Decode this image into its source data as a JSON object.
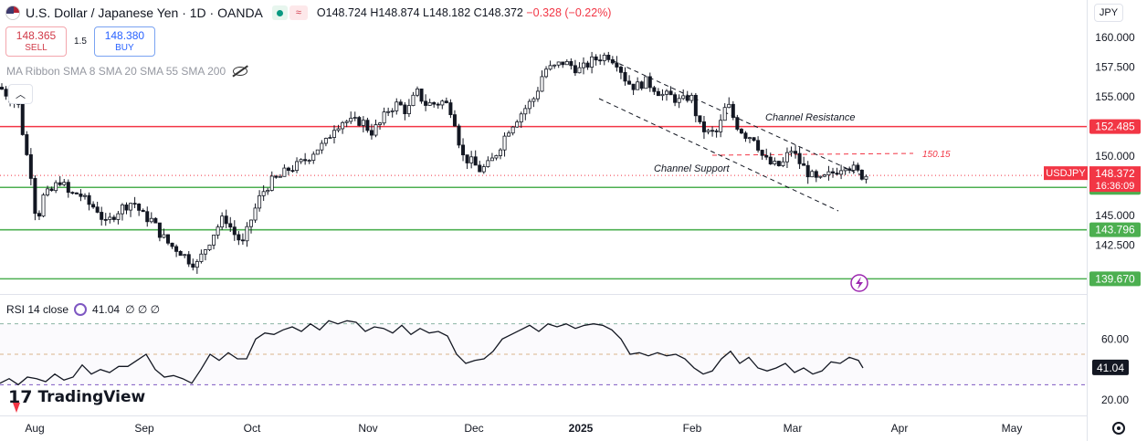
{
  "header": {
    "symbol": "U.S. Dollar / Japanese Yen · 1D · OANDA",
    "open_label": "O",
    "open": "148.724",
    "high_label": "H",
    "high": "148.874",
    "low_label": "L",
    "low": "148.182",
    "close_label": "C",
    "close": "148.372",
    "change": "−0.328 (−0.22%)"
  },
  "trade": {
    "sell_price": "148.365",
    "sell_label": "SELL",
    "spread": "1.5",
    "buy_price": "148.380",
    "buy_label": "BUY"
  },
  "indicator_label": "MA Ribbon SMA 8 SMA 20 SMA 55 SMA 200",
  "currency": "JPY",
  "rsi": {
    "label": "RSI 14 close",
    "value": "41.04",
    "extra": "∅ ∅ ∅"
  },
  "brand": "TradingView",
  "colors": {
    "up": "#089981",
    "down": "#f23645",
    "resistance": "#f23645",
    "support": "#4caf50",
    "rsi_line": "#131722",
    "price_tag": "#f23645"
  },
  "chart_data": {
    "type": "candlestick",
    "x_labels": [
      "Aug",
      "Sep",
      "Oct",
      "Nov",
      "Dec",
      "2025",
      "Feb",
      "Mar",
      "Apr",
      "May"
    ],
    "y_ticks": [
      "160.000",
      "157.500",
      "155.000",
      "150.000",
      "145.000",
      "142.500"
    ],
    "ylim": [
      138.7,
      161.6
    ],
    "levels": [
      {
        "label": "152.485",
        "value": 152.485,
        "kind": "resistance"
      },
      {
        "label": "147.364",
        "value": 147.364,
        "kind": "support"
      },
      {
        "label": "143.796",
        "value": 143.796,
        "kind": "support"
      },
      {
        "label": "139.670",
        "value": 139.67,
        "kind": "support"
      }
    ],
    "dashed_level": {
      "label": "150.15",
      "value": 150.15
    },
    "last_price": {
      "symbol": "USDJPY",
      "price": "148.372",
      "countdown": "16:36:09",
      "value": 148.372
    },
    "annotations": [
      "Channel Resistance",
      "Channel Support"
    ],
    "close_path": [
      [
        0,
        155.8
      ],
      [
        10,
        155.0
      ],
      [
        20,
        154.3
      ],
      [
        28,
        150.5
      ],
      [
        36,
        147.8
      ],
      [
        40,
        144.0
      ],
      [
        46,
        146.5
      ],
      [
        56,
        147.0
      ],
      [
        66,
        148.0
      ],
      [
        76,
        146.7
      ],
      [
        86,
        146.9
      ],
      [
        96,
        146.0
      ],
      [
        106,
        145.6
      ],
      [
        116,
        144.2
      ],
      [
        126,
        145.2
      ],
      [
        136,
        145.8
      ],
      [
        146,
        146.2
      ],
      [
        156,
        145.0
      ],
      [
        166,
        144.6
      ],
      [
        176,
        143.4
      ],
      [
        186,
        142.5
      ],
      [
        196,
        142.1
      ],
      [
        206,
        141.3
      ],
      [
        216,
        140.9
      ],
      [
        226,
        142.4
      ],
      [
        236,
        143.8
      ],
      [
        246,
        144.9
      ],
      [
        256,
        143.5
      ],
      [
        266,
        142.6
      ],
      [
        276,
        144.9
      ],
      [
        286,
        146.8
      ],
      [
        296,
        147.8
      ],
      [
        306,
        148.2
      ],
      [
        316,
        148.9
      ],
      [
        326,
        149.2
      ],
      [
        336,
        149.8
      ],
      [
        346,
        150.6
      ],
      [
        356,
        151.0
      ],
      [
        366,
        152.5
      ],
      [
        376,
        153.0
      ],
      [
        386,
        152.8
      ],
      [
        396,
        153.0
      ],
      [
        406,
        152.0
      ],
      [
        416,
        152.7
      ],
      [
        426,
        154.0
      ],
      [
        436,
        154.4
      ],
      [
        446,
        153.7
      ],
      [
        456,
        155.4
      ],
      [
        466,
        154.4
      ],
      [
        476,
        154.4
      ],
      [
        486,
        154.6
      ],
      [
        496,
        153.7
      ],
      [
        506,
        150.0
      ],
      [
        516,
        149.5
      ],
      [
        526,
        148.8
      ],
      [
        536,
        149.3
      ],
      [
        546,
        150.6
      ],
      [
        556,
        152.2
      ],
      [
        566,
        153.2
      ],
      [
        576,
        154.1
      ],
      [
        586,
        155.0
      ],
      [
        596,
        157.3
      ],
      [
        606,
        157.4
      ],
      [
        616,
        157.9
      ],
      [
        626,
        157.6
      ],
      [
        636,
        157.2
      ],
      [
        646,
        157.9
      ],
      [
        656,
        158.3
      ],
      [
        666,
        158.5
      ],
      [
        676,
        157.9
      ],
      [
        686,
        156.3
      ],
      [
        696,
        155.8
      ],
      [
        706,
        156.3
      ],
      [
        716,
        155.8
      ],
      [
        726,
        155.1
      ],
      [
        736,
        155.0
      ],
      [
        746,
        154.5
      ],
      [
        756,
        155.2
      ],
      [
        766,
        152.5
      ],
      [
        776,
        151.9
      ],
      [
        786,
        152.0
      ],
      [
        796,
        154.5
      ],
      [
        806,
        152.7
      ],
      [
        816,
        151.8
      ],
      [
        826,
        151.6
      ],
      [
        836,
        149.8
      ],
      [
        846,
        149.2
      ],
      [
        856,
        149.2
      ],
      [
        866,
        150.6
      ],
      [
        876,
        149.4
      ],
      [
        886,
        148.5
      ],
      [
        896,
        147.8
      ],
      [
        906,
        148.3
      ],
      [
        916,
        148.8
      ],
      [
        926,
        149.4
      ],
      [
        936,
        148.8
      ],
      [
        942,
        148.4
      ],
      [
        950,
        148.372
      ]
    ],
    "rsi_series": {
      "name": "RSI 14 close",
      "ylim": [
        20,
        80
      ],
      "y_ticks": [
        "60.00",
        "20.00"
      ],
      "last": "41.04",
      "values": [
        [
          0,
          31
        ],
        [
          10,
          34
        ],
        [
          20,
          30
        ],
        [
          30,
          35
        ],
        [
          40,
          34
        ],
        [
          50,
          32
        ],
        [
          60,
          37
        ],
        [
          70,
          33
        ],
        [
          80,
          35
        ],
        [
          90,
          43
        ],
        [
          100,
          37
        ],
        [
          110,
          40
        ],
        [
          120,
          38
        ],
        [
          130,
          42
        ],
        [
          140,
          42
        ],
        [
          150,
          46
        ],
        [
          160,
          50
        ],
        [
          170,
          40
        ],
        [
          180,
          35
        ],
        [
          190,
          36
        ],
        [
          200,
          34
        ],
        [
          210,
          31
        ],
        [
          220,
          40
        ],
        [
          230,
          50
        ],
        [
          240,
          46
        ],
        [
          250,
          51
        ],
        [
          260,
          47
        ],
        [
          270,
          47
        ],
        [
          280,
          60
        ],
        [
          290,
          64
        ],
        [
          300,
          63
        ],
        [
          310,
          66
        ],
        [
          320,
          68
        ],
        [
          330,
          65
        ],
        [
          340,
          70
        ],
        [
          350,
          66
        ],
        [
          360,
          72
        ],
        [
          370,
          70
        ],
        [
          380,
          72
        ],
        [
          390,
          71
        ],
        [
          400,
          65
        ],
        [
          410,
          68
        ],
        [
          420,
          67
        ],
        [
          430,
          64
        ],
        [
          440,
          69
        ],
        [
          450,
          63
        ],
        [
          460,
          67
        ],
        [
          470,
          64
        ],
        [
          480,
          65
        ],
        [
          490,
          62
        ],
        [
          500,
          50
        ],
        [
          510,
          44
        ],
        [
          520,
          46
        ],
        [
          530,
          47
        ],
        [
          540,
          52
        ],
        [
          550,
          60
        ],
        [
          560,
          63
        ],
        [
          570,
          66
        ],
        [
          580,
          69
        ],
        [
          590,
          65
        ],
        [
          600,
          70
        ],
        [
          610,
          68
        ],
        [
          620,
          70
        ],
        [
          630,
          67
        ],
        [
          640,
          69
        ],
        [
          650,
          70
        ],
        [
          660,
          69
        ],
        [
          670,
          66
        ],
        [
          680,
          60
        ],
        [
          690,
          50
        ],
        [
          700,
          51
        ],
        [
          710,
          49
        ],
        [
          720,
          51
        ],
        [
          730,
          49
        ],
        [
          740,
          50
        ],
        [
          750,
          47
        ],
        [
          760,
          41
        ],
        [
          770,
          37
        ],
        [
          780,
          39
        ],
        [
          790,
          47
        ],
        [
          800,
          52
        ],
        [
          810,
          44
        ],
        [
          820,
          48
        ],
        [
          830,
          41
        ],
        [
          840,
          39
        ],
        [
          850,
          41
        ],
        [
          860,
          44
        ],
        [
          870,
          38
        ],
        [
          880,
          41
        ],
        [
          890,
          37
        ],
        [
          900,
          39
        ],
        [
          910,
          45
        ],
        [
          920,
          44
        ],
        [
          930,
          48
        ],
        [
          940,
          46
        ],
        [
          945,
          41
        ]
      ]
    }
  }
}
